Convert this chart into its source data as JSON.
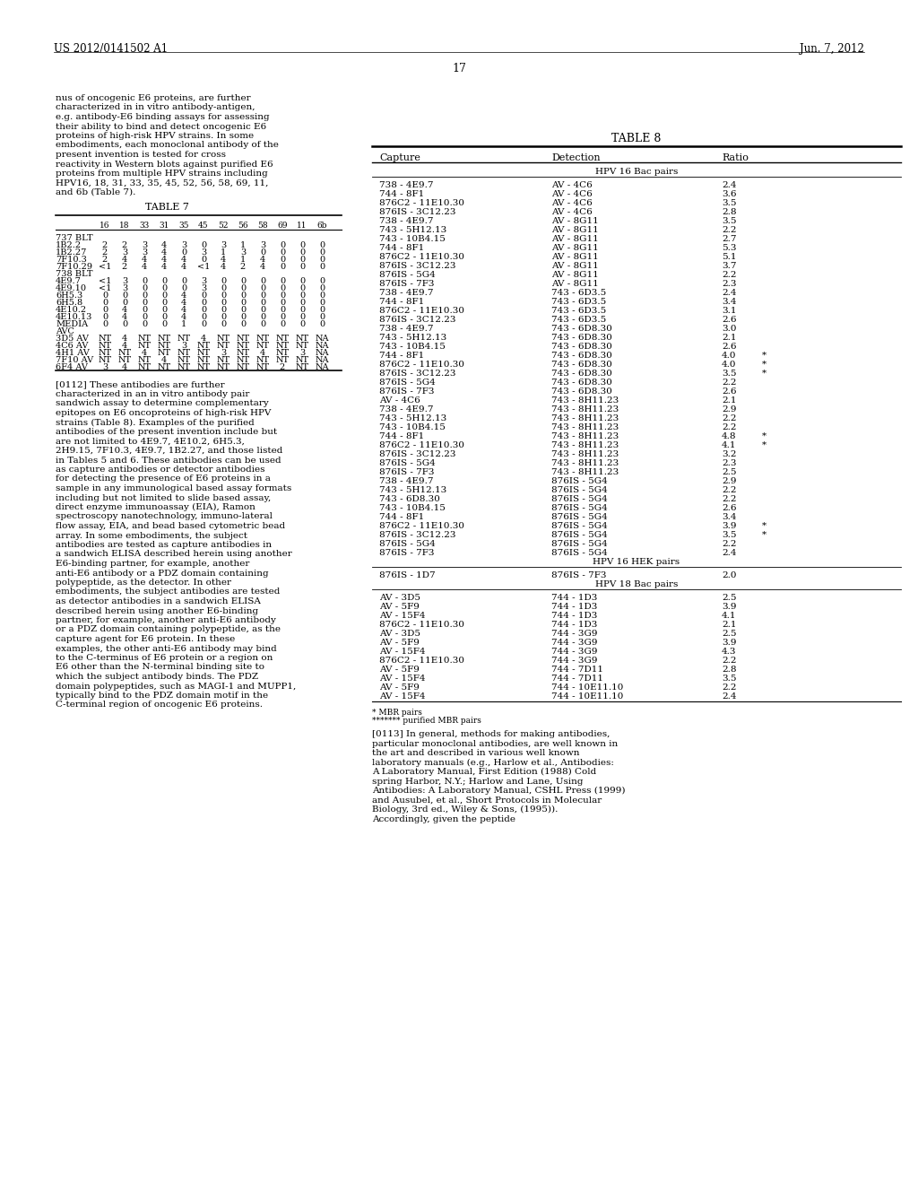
{
  "header_left": "US 2012/0141502 A1",
  "header_right": "Jun. 7, 2012",
  "page_number": "17",
  "left_para1": "nus of oncogenic E6 proteins, are further characterized in in vitro antibody-antigen, e.g. antibody-E6 binding assays for assessing their ability to bind and detect oncogenic E6 proteins of high-risk HPV strains. In some embodiments, each monoclonal antibody of the present invention is tested for cross reactivity in Western blots against purified E6 proteins from multiple HPV strains including HPV16, 18, 31, 33, 35, 45, 52, 56, 58, 69, 11, and 6b (Table 7).",
  "left_para2": "[0112]  These antibodies are further characterized in an in vitro antibody pair sandwich assay to determine complementary epitopes on E6 oncoproteins of high-risk HPV strains (Table 8). Examples of the purified antibodies of the present invention include but are not limited to 4E9.7, 4E10.2, 6H5.3, 2H9.15, 7F10.3, 4E9.7, 1B2.27, and those listed in Tables 5 and 6. These antibodies can be used as capture antibodies or detector antibodies for detecting the presence of E6 proteins in a sample in any immunological based assay formats including but not limited to slide based assay, direct enzyme immunoassay (EIA), Ramon spectroscopy nanotechnology, immuno-lateral flow assay, EIA, and bead based cytometric bead array. In some embodiments, the subject antibodies are tested as capture antibodies in a sandwich ELISA described herein using another E6-binding partner, for example, another anti-E6 antibody or a PDZ domain containing polypeptide, as the detector. In other embodiments, the subject antibodies are tested as detector antibodies in a sandwich ELISA described herein using another E6-binding partner, for example, another anti-E6 antibody or a PDZ domain containing polypeptide, as the capture agent for E6 protein. In these examples, the other anti-E6 antibody may bind to the C-terminus of E6 protein or a region on E6 other than the N-terminal binding site to which the subject antibody binds. The PDZ domain polypeptides, such as MAGI-1 and MUPP1, typically bind to the PDZ domain motif in the C-terminal region of oncogenic E6 proteins.",
  "table7_title": "TABLE 7",
  "table7_col_headers": [
    "",
    "16",
    "18",
    "33",
    "31",
    "35",
    "45",
    "52",
    "56",
    "58",
    "69",
    "11",
    "6b"
  ],
  "table7_rows": [
    [
      "737 BLT",
      "",
      "",
      "",
      "",
      "",
      "",
      "",
      "",
      "",
      "",
      "",
      ""
    ],
    [
      "1B2.2",
      "2",
      "2",
      "3",
      "4",
      "3",
      "0",
      "3",
      "1",
      "3",
      "0",
      "0",
      "0"
    ],
    [
      "1B2.27",
      "2",
      "3",
      "3",
      "4",
      "0",
      "3",
      "1",
      "3",
      "0",
      "0",
      "0",
      "0"
    ],
    [
      "7F10.3",
      "2",
      "4",
      "4",
      "4",
      "4",
      "0",
      "4",
      "1",
      "4",
      "0",
      "0",
      "0"
    ],
    [
      "7F10.29",
      "<1",
      "2",
      "4",
      "4",
      "4",
      "<1",
      "4",
      "2",
      "4",
      "0",
      "0",
      "0"
    ],
    [
      "738 BLT",
      "",
      "",
      "",
      "",
      "",
      "",
      "",
      "",
      "",
      "",
      "",
      ""
    ],
    [
      "4E9.7",
      "<1",
      "3",
      "0",
      "0",
      "0",
      "3",
      "0",
      "0",
      "0",
      "0",
      "0",
      "0"
    ],
    [
      "4E9.10",
      "<1",
      "3",
      "0",
      "0",
      "0",
      "3",
      "0",
      "0",
      "0",
      "0",
      "0",
      "0"
    ],
    [
      "6H5.3",
      "0",
      "0",
      "0",
      "0",
      "4",
      "0",
      "0",
      "0",
      "0",
      "0",
      "0",
      "0"
    ],
    [
      "6H5.8",
      "0",
      "0",
      "0",
      "0",
      "4",
      "0",
      "0",
      "0",
      "0",
      "0",
      "0",
      "0"
    ],
    [
      "4E10.2",
      "0",
      "4",
      "0",
      "0",
      "4",
      "0",
      "0",
      "0",
      "0",
      "0",
      "0",
      "0"
    ],
    [
      "4E10.13",
      "0",
      "4",
      "0",
      "0",
      "4",
      "0",
      "0",
      "0",
      "0",
      "0",
      "0",
      "0"
    ],
    [
      "MEDIA",
      "0",
      "0",
      "0",
      "0",
      "1",
      "0",
      "0",
      "0",
      "0",
      "0",
      "0",
      "0"
    ],
    [
      "AVC",
      "",
      "",
      "",
      "",
      "",
      "",
      "",
      "",
      "",
      "",
      "",
      ""
    ],
    [
      "3D5 AV",
      "NT",
      "4",
      "NT",
      "NT",
      "NT",
      "4",
      "NT",
      "NT",
      "NT",
      "NT",
      "NT",
      "NA"
    ],
    [
      "4C6 AV",
      "NT",
      "4",
      "NT",
      "NT",
      "3",
      "NT",
      "NT",
      "NT",
      "NT",
      "NT",
      "NT",
      "NA"
    ],
    [
      "4H1 AV",
      "NT",
      "NT",
      "4",
      "NT",
      "NT",
      "NT",
      "3",
      "NT",
      "4",
      "NT",
      "3",
      "NA"
    ],
    [
      "7F10 AV",
      "NT",
      "NT",
      "NT",
      "4",
      "NT",
      "NT",
      "NT",
      "NT",
      "NT",
      "NT",
      "NT",
      "NA"
    ],
    [
      "6F4 AV",
      "3",
      "4",
      "NT",
      "NT",
      "NT",
      "NT",
      "NT",
      "NT",
      "NT",
      "2",
      "NT",
      "NA"
    ]
  ],
  "table8_title": "TABLE 8",
  "table8_col_headers": [
    "Capture",
    "Detection",
    "Ratio"
  ],
  "table8_sections": [
    {
      "section_header": "HPV 16 Bac pairs",
      "rows": [
        [
          "738 - 4E9.7",
          "AV - 4C6",
          "2.4",
          ""
        ],
        [
          "744 - 8F1",
          "AV - 4C6",
          "3.6",
          ""
        ],
        [
          "876C2 - 11E10.30",
          "AV - 4C6",
          "3.5",
          ""
        ],
        [
          "876IS - 3C12.23",
          "AV - 4C6",
          "2.8",
          ""
        ],
        [
          "738 - 4E9.7",
          "AV - 8G11",
          "3.5",
          ""
        ],
        [
          "743 - 5H12.13",
          "AV - 8G11",
          "2.2",
          ""
        ],
        [
          "743 - 10B4.15",
          "AV - 8G11",
          "2.7",
          ""
        ],
        [
          "744 - 8F1",
          "AV - 8G11",
          "5.3",
          ""
        ],
        [
          "876C2 - 11E10.30",
          "AV - 8G11",
          "5.1",
          ""
        ],
        [
          "876IS - 3C12.23",
          "AV - 8G11",
          "3.7",
          ""
        ],
        [
          "876IS - 5G4",
          "AV - 8G11",
          "2.2",
          ""
        ],
        [
          "876IS - 7F3",
          "AV - 8G11",
          "2.3",
          ""
        ],
        [
          "738 - 4E9.7",
          "743 - 6D3.5",
          "2.4",
          ""
        ],
        [
          "744 - 8F1",
          "743 - 6D3.5",
          "3.4",
          ""
        ],
        [
          "876C2 - 11E10.30",
          "743 - 6D3.5",
          "3.1",
          ""
        ],
        [
          "876IS - 3C12.23",
          "743 - 6D3.5",
          "2.6",
          ""
        ],
        [
          "738 - 4E9.7",
          "743 - 6D8.30",
          "3.0",
          ""
        ],
        [
          "743 - 5H12.13",
          "743 - 6D8.30",
          "2.1",
          ""
        ],
        [
          "743 - 10B4.15",
          "743 - 6D8.30",
          "2.6",
          ""
        ],
        [
          "744 - 8F1",
          "743 - 6D8.30",
          "4.0",
          "*"
        ],
        [
          "876C2 - 11E10.30",
          "743 - 6D8.30",
          "4.0",
          "*"
        ],
        [
          "876IS - 3C12.23",
          "743 - 6D8.30",
          "3.5",
          "*"
        ],
        [
          "876IS - 5G4",
          "743 - 6D8.30",
          "2.2",
          ""
        ],
        [
          "876IS - 7F3",
          "743 - 6D8.30",
          "2.6",
          ""
        ],
        [
          "AV - 4C6",
          "743 - 8H11.23",
          "2.1",
          ""
        ],
        [
          "738 - 4E9.7",
          "743 - 8H11.23",
          "2.9",
          ""
        ],
        [
          "743 - 5H12.13",
          "743 - 8H11.23",
          "2.2",
          ""
        ],
        [
          "743 - 10B4.15",
          "743 - 8H11.23",
          "2.2",
          ""
        ],
        [
          "744 - 8F1",
          "743 - 8H11.23",
          "4.8",
          "*"
        ],
        [
          "876C2 - 11E10.30",
          "743 - 8H11.23",
          "4.1",
          "*"
        ],
        [
          "876IS - 3C12.23",
          "743 - 8H11.23",
          "3.2",
          ""
        ],
        [
          "876IS - 5G4",
          "743 - 8H11.23",
          "2.3",
          ""
        ],
        [
          "876IS - 7F3",
          "743 - 8H11.23",
          "2.5",
          ""
        ],
        [
          "738 - 4E9.7",
          "876IS - 5G4",
          "2.9",
          ""
        ],
        [
          "743 - 5H12.13",
          "876IS - 5G4",
          "2.2",
          ""
        ],
        [
          "743 - 6D8.30",
          "876IS - 5G4",
          "2.2",
          ""
        ],
        [
          "743 - 10B4.15",
          "876IS - 5G4",
          "2.6",
          ""
        ],
        [
          "744 - 8F1",
          "876IS - 5G4",
          "3.4",
          ""
        ],
        [
          "876C2 - 11E10.30",
          "876IS - 5G4",
          "3.9",
          "*"
        ],
        [
          "876IS - 3C12.23",
          "876IS - 5G4",
          "3.5",
          "*"
        ],
        [
          "876IS - 5G4",
          "876IS - 5G4",
          "2.2",
          ""
        ],
        [
          "876IS - 7F3",
          "876IS - 5G4",
          "2.4",
          ""
        ]
      ]
    },
    {
      "section_header": "HPV 16 HEK pairs",
      "rows": [
        [
          "876IS - 1D7",
          "876IS - 7F3",
          "2.0",
          ""
        ]
      ]
    },
    {
      "section_header": "HPV 18 Bac pairs",
      "rows": [
        [
          "AV - 3D5",
          "744 - 1D3",
          "2.5",
          ""
        ],
        [
          "AV - 5F9",
          "744 - 1D3",
          "3.9",
          ""
        ],
        [
          "AV - 15F4",
          "744 - 1D3",
          "4.1",
          ""
        ],
        [
          "876C2 - 11E10.30",
          "744 - 1D3",
          "2.1",
          ""
        ],
        [
          "AV - 3D5",
          "744 - 3G9",
          "2.5",
          ""
        ],
        [
          "AV - 5F9",
          "744 - 3G9",
          "3.9",
          ""
        ],
        [
          "AV - 15F4",
          "744 - 3G9",
          "4.3",
          ""
        ],
        [
          "876C2 - 11E10.30",
          "744 - 3G9",
          "2.2",
          ""
        ],
        [
          "AV - 5F9",
          "744 - 7D11",
          "2.8",
          ""
        ],
        [
          "AV - 15F4",
          "744 - 7D11",
          "3.5",
          ""
        ],
        [
          "AV - 5F9",
          "744 - 10E11.10",
          "2.2",
          ""
        ],
        [
          "AV - 15F4",
          "744 - 10E11.10",
          "2.4",
          ""
        ]
      ]
    }
  ],
  "table8_footnotes": [
    "* MBR pairs",
    "******* purified MBR pairs"
  ],
  "right_para": "[0113]  In general, methods for making antibodies, particular monoclonal antibodies, are well known in the art and described in various well known laboratory manuals (e.g., Harlow et al., Antibodies: A Laboratory Manual, First Edition (1988) Cold spring Harbor, N.Y.; Harlow and Lane, Using Antibodies: A Laboratory Manual, CSHL Press (1999) and Ausubel, et al., Short Protocols in Molecular Biology, 3rd ed., Wiley & Sons, (1995)). Accordingly, given the peptide"
}
